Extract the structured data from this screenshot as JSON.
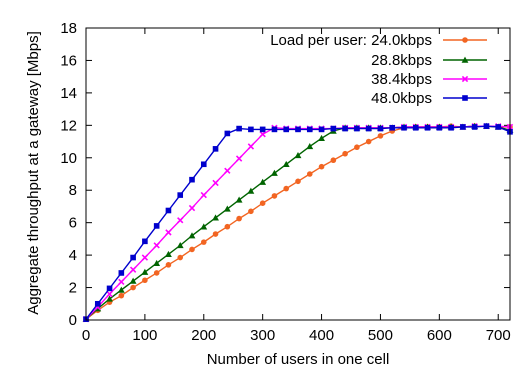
{
  "chart_data": {
    "type": "line",
    "xlabel": "Number of users in one cell",
    "ylabel": "Aggregate throughput at a gateway [Mbps]",
    "xlim": [
      0,
      720
    ],
    "ylim": [
      0,
      18
    ],
    "xticks": [
      0,
      100,
      200,
      300,
      400,
      500,
      600,
      700
    ],
    "yticks": [
      0,
      2,
      4,
      6,
      8,
      10,
      12,
      14,
      16,
      18
    ],
    "xtick_labels": [
      "0",
      "100",
      "200",
      "300",
      "400",
      "500",
      "600",
      "700"
    ],
    "ytick_labels": [
      "0",
      "2",
      "4",
      "6",
      "8",
      "10",
      "12",
      "14",
      "16",
      "18"
    ],
    "grid": false,
    "legend_position": "top-right",
    "series": [
      {
        "name": "Load per user: 24.0kbps",
        "color": "#f26522",
        "marker": "circle",
        "x": [
          0,
          20,
          40,
          60,
          80,
          100,
          120,
          140,
          160,
          180,
          200,
          220,
          240,
          260,
          280,
          300,
          320,
          340,
          360,
          380,
          400,
          420,
          440,
          460,
          480,
          500,
          520,
          540,
          560,
          580,
          600,
          620,
          640,
          660,
          680,
          700,
          720
        ],
        "y": [
          0.05,
          0.6,
          1.1,
          1.5,
          2.0,
          2.45,
          2.9,
          3.4,
          3.85,
          4.35,
          4.8,
          5.3,
          5.75,
          6.25,
          6.7,
          7.2,
          7.65,
          8.1,
          8.55,
          9.0,
          9.45,
          9.85,
          10.25,
          10.65,
          11.0,
          11.35,
          11.65,
          11.85,
          11.9,
          11.9,
          11.9,
          11.95,
          11.9,
          11.95,
          11.95,
          11.9,
          11.9
        ]
      },
      {
        "name": "28.8kbps",
        "color": "#006400",
        "marker": "triangle",
        "x": [
          0,
          20,
          40,
          60,
          80,
          100,
          120,
          140,
          160,
          180,
          200,
          220,
          240,
          260,
          280,
          300,
          320,
          340,
          360,
          380,
          400,
          420,
          440,
          460,
          480,
          500,
          520,
          540,
          560,
          580,
          600,
          620,
          640,
          660,
          680,
          700,
          720
        ],
        "y": [
          0.05,
          0.7,
          1.3,
          1.85,
          2.4,
          2.95,
          3.5,
          4.05,
          4.6,
          5.2,
          5.75,
          6.3,
          6.85,
          7.4,
          7.95,
          8.5,
          9.05,
          9.6,
          10.15,
          10.7,
          11.2,
          11.65,
          11.85,
          11.85,
          11.85,
          11.85,
          11.85,
          11.9,
          11.9,
          11.9,
          11.9,
          11.9,
          11.9,
          11.95,
          11.95,
          11.9,
          11.7
        ]
      },
      {
        "name": "38.4kbps",
        "color": "#ff00ff",
        "marker": "x",
        "x": [
          0,
          20,
          40,
          60,
          80,
          100,
          120,
          140,
          160,
          180,
          200,
          220,
          240,
          260,
          280,
          300,
          320,
          340,
          360,
          380,
          400,
          420,
          440,
          460,
          480,
          500,
          520,
          540,
          560,
          580,
          600,
          620,
          640,
          660,
          680,
          700,
          720
        ],
        "y": [
          0.05,
          0.8,
          1.6,
          2.35,
          3.1,
          3.85,
          4.6,
          5.4,
          6.15,
          6.9,
          7.7,
          8.45,
          9.2,
          9.95,
          10.7,
          11.45,
          11.85,
          11.8,
          11.8,
          11.8,
          11.8,
          11.8,
          11.85,
          11.85,
          11.85,
          11.85,
          11.85,
          11.9,
          11.9,
          11.9,
          11.9,
          11.9,
          11.9,
          11.95,
          11.95,
          11.95,
          11.9
        ]
      },
      {
        "name": "48.0kbps",
        "color": "#0000cd",
        "marker": "square",
        "x": [
          0,
          20,
          40,
          60,
          80,
          100,
          120,
          140,
          160,
          180,
          200,
          220,
          240,
          260,
          280,
          300,
          320,
          340,
          360,
          380,
          400,
          420,
          440,
          460,
          480,
          500,
          520,
          540,
          560,
          580,
          600,
          620,
          640,
          660,
          680,
          700,
          720
        ],
        "y": [
          0.05,
          1.0,
          1.95,
          2.9,
          3.85,
          4.85,
          5.8,
          6.75,
          7.7,
          8.65,
          9.6,
          10.55,
          11.5,
          11.8,
          11.75,
          11.75,
          11.75,
          11.75,
          11.75,
          11.75,
          11.75,
          11.8,
          11.8,
          11.8,
          11.8,
          11.8,
          11.85,
          11.85,
          11.85,
          11.85,
          11.85,
          11.85,
          11.9,
          11.9,
          11.95,
          11.9,
          11.6
        ]
      }
    ]
  }
}
